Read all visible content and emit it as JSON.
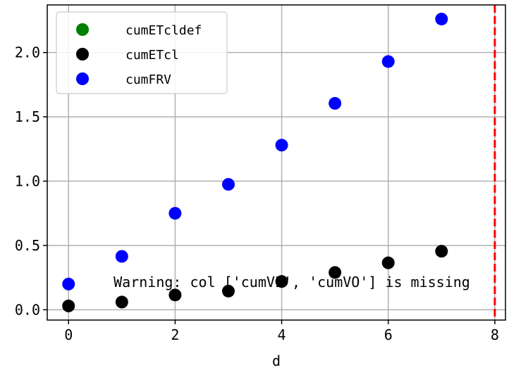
{
  "chart_data": {
    "type": "scatter",
    "xlabel": "d",
    "ylabel": "",
    "xlim": [
      -0.4,
      8.2
    ],
    "ylim": [
      -0.08,
      2.37
    ],
    "xticks": [
      "0",
      "2",
      "4",
      "6",
      "8"
    ],
    "yticks": [
      "0.0",
      "0.5",
      "1.0",
      "1.5",
      "2.0"
    ],
    "grid": true,
    "legend_position": "upper-left",
    "series": [
      {
        "name": "cumETcldef",
        "color": "#008000",
        "x": [],
        "y": []
      },
      {
        "name": "cumETcl",
        "color": "#000000",
        "x": [
          0,
          1,
          2,
          3,
          4,
          5,
          6,
          7
        ],
        "y": [
          0.03,
          0.06,
          0.115,
          0.145,
          0.22,
          0.29,
          0.365,
          0.455
        ]
      },
      {
        "name": "cumFRV",
        "color": "#0000ff",
        "x": [
          0,
          1,
          2,
          3,
          4,
          5,
          6,
          7
        ],
        "y": [
          0.2,
          0.415,
          0.75,
          0.975,
          1.28,
          1.605,
          1.93,
          2.26
        ]
      }
    ],
    "vline": {
      "x": 8,
      "color": "#ff0000",
      "style": "dashed"
    },
    "annotation": "Warning: col ['cumVI', 'cumVO'] is missing"
  }
}
